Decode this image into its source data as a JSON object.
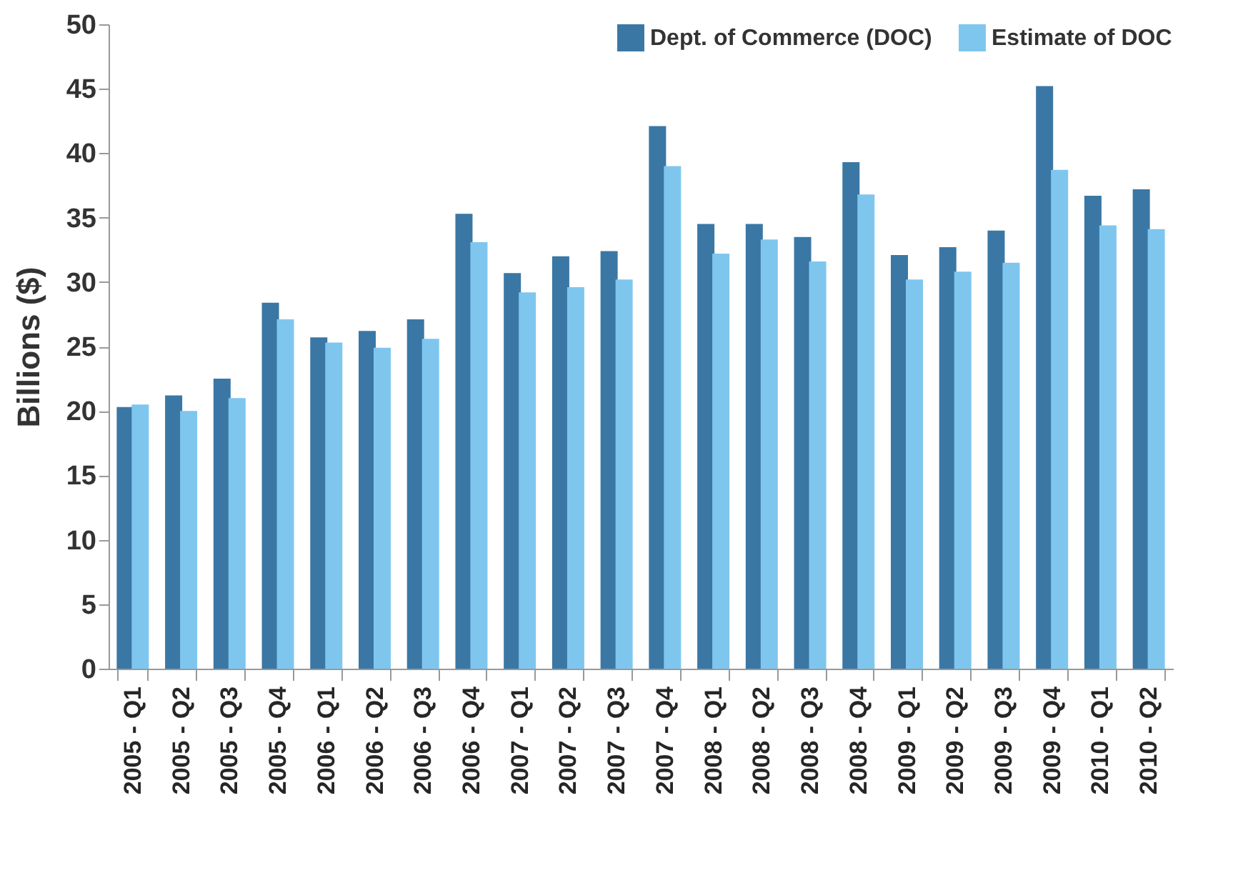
{
  "chart_data": {
    "type": "bar",
    "ylabel": "Billions ($)",
    "categories": [
      "2005 - Q1",
      "2005 - Q2",
      "2005 - Q3",
      "2005 - Q4",
      "2006 - Q1",
      "2006 - Q2",
      "2006 - Q3",
      "2006 - Q4",
      "2007 - Q1",
      "2007 - Q2",
      "2007 - Q3",
      "2007 - Q4",
      "2008 - Q1",
      "2008 - Q2",
      "2008 - Q3",
      "2008 - Q4",
      "2009 - Q1",
      "2009 - Q2",
      "2009 - Q3",
      "2009 - Q4",
      "2010 - Q1",
      "2010 - Q2"
    ],
    "series": [
      {
        "name": "Dept. of Commerce (DOC)",
        "color": "#3a77a5",
        "values": [
          20.3,
          21.2,
          22.5,
          28.4,
          25.7,
          26.2,
          27.1,
          35.3,
          30.7,
          32.0,
          32.4,
          42.1,
          34.5,
          34.5,
          33.5,
          39.3,
          32.1,
          32.7,
          34.0,
          45.2,
          36.7,
          37.2
        ]
      },
      {
        "name": "Estimate of DOC",
        "color": "#7fc6ef",
        "values": [
          20.5,
          20.0,
          21.0,
          27.1,
          25.3,
          24.9,
          25.6,
          33.1,
          29.2,
          29.6,
          30.2,
          39.0,
          32.2,
          33.3,
          31.6,
          36.8,
          30.2,
          30.8,
          31.5,
          38.7,
          34.4,
          34.1
        ]
      }
    ],
    "ylim": [
      0,
      50
    ],
    "yticks": [
      0,
      5,
      10,
      15,
      20,
      25,
      30,
      35,
      40,
      45,
      50
    ],
    "grid": false,
    "legend": "top right"
  }
}
